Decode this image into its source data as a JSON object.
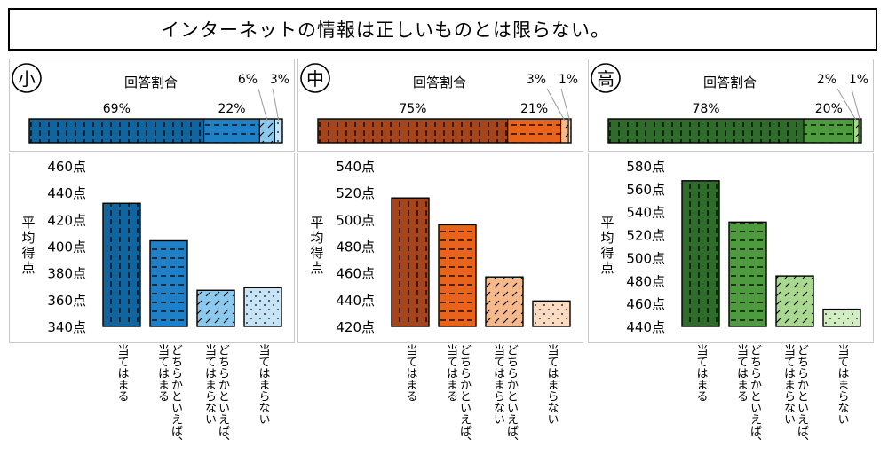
{
  "title": "インターネットの情報は正しいものとは限らない。",
  "share_label": "回答割合",
  "ylabel": "平均得点",
  "categories": [
    "当てはまる",
    "どちらかといえば、当てはまる",
    "どちらかといえば、当てはまらない",
    "当てはまらない"
  ],
  "categories_display": [
    [
      "当てはまる"
    ],
    [
      "どちらかといえば、",
      "当てはまる"
    ],
    [
      "どちらかといえば、",
      "当てはまらない"
    ],
    [
      "当てはまらない"
    ]
  ],
  "colors": {
    "小": [
      "#11659e",
      "#1f80c6",
      "#8cc9ee",
      "#c6e4f6"
    ],
    "中": [
      "#a6441c",
      "#e8641c",
      "#f6b98c",
      "#fbdcc3"
    ],
    "高": [
      "#2f6b2a",
      "#4e9a3e",
      "#a9d990",
      "#d3edc3"
    ]
  },
  "chart_data": [
    {
      "type": "bar",
      "panel_label": "小",
      "categories": [
        "当てはまる",
        "どちらかといえば、当てはまる",
        "どちらかといえば、当てはまらない",
        "当てはまらない"
      ],
      "share_values": [
        69,
        22,
        6,
        3
      ],
      "share_labels": [
        "69%",
        "22%",
        "6%",
        "3%"
      ],
      "values": [
        432,
        404,
        367,
        369
      ],
      "ylim": [
        340,
        460
      ],
      "yticks": [
        "340点",
        "360点",
        "380点",
        "400点",
        "420点",
        "440点",
        "460点"
      ]
    },
    {
      "type": "bar",
      "panel_label": "中",
      "categories": [
        "当てはまる",
        "どちらかといえば、当てはまる",
        "どちらかといえば、当てはまらない",
        "当てはまらない"
      ],
      "share_values": [
        75,
        21,
        3,
        1
      ],
      "share_labels": [
        "75%",
        "21%",
        "3%",
        "1%"
      ],
      "values": [
        516,
        496,
        457,
        439
      ],
      "ylim": [
        420,
        540
      ],
      "yticks": [
        "420点",
        "440点",
        "460点",
        "480点",
        "500点",
        "520点",
        "540点"
      ]
    },
    {
      "type": "bar",
      "panel_label": "高",
      "categories": [
        "当てはまる",
        "どちらかといえば、当てはまる",
        "どちらかといえば、当てはまらない",
        "当てはまらない"
      ],
      "share_values": [
        78,
        20,
        2,
        1
      ],
      "share_labels": [
        "78%",
        "20%",
        "2%",
        "1%"
      ],
      "values": [
        567,
        531,
        484,
        455
      ],
      "ylim": [
        440,
        580
      ],
      "yticks": [
        "440点",
        "460点",
        "480点",
        "500点",
        "520点",
        "540点",
        "560点",
        "580点"
      ]
    }
  ]
}
